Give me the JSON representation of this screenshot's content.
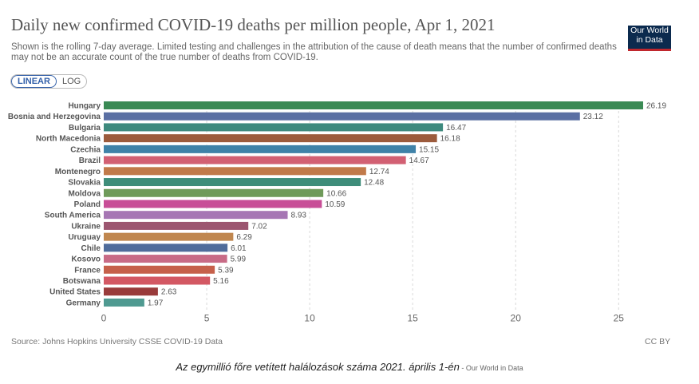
{
  "header": {
    "title": "Daily new confirmed COVID-19 deaths per million people, Apr 1, 2021",
    "subtitle": "Shown is the rolling 7-day average. Limited testing and challenges in the attribution of the cause of death means that the number of confirmed deaths may not be an accurate count of the true number of deaths from COVID-19.",
    "logo_line1": "Our World",
    "logo_line2": "in Data",
    "logo_color": "#0b2a4e",
    "logo_accent": "#c0272d"
  },
  "controls": {
    "linear_label": "LINEAR",
    "log_label": "LOG",
    "active": "LINEAR"
  },
  "footer": {
    "source": "Source: Johns Hopkins University CSSE COVID-19 Data",
    "license": "CC BY"
  },
  "caption": {
    "text": "Az egymillió főre vetített halálozások száma 2021. április 1-én",
    "credit": " - Our World in Data"
  },
  "chart_data": {
    "type": "bar",
    "orientation": "horizontal",
    "categories": [
      "Hungary",
      "Bosnia and Herzegovina",
      "Bulgaria",
      "North Macedonia",
      "Czechia",
      "Brazil",
      "Montenegro",
      "Slovakia",
      "Moldova",
      "Poland",
      "South America",
      "Ukraine",
      "Uruguay",
      "Chile",
      "Kosovo",
      "France",
      "Botswana",
      "United States",
      "Germany"
    ],
    "values": [
      26.19,
      23.12,
      16.47,
      16.18,
      15.15,
      14.67,
      12.74,
      12.48,
      10.66,
      10.59,
      8.93,
      7.02,
      6.29,
      6.01,
      5.99,
      5.39,
      5.16,
      2.63,
      1.97
    ],
    "value_labels": [
      "26.19",
      "23.12",
      "16.47",
      "16.18",
      "15.15",
      "14.67",
      "12.74",
      "12.48",
      "10.66",
      "10.59",
      "8.93",
      "7.02",
      "6.29",
      "6.01",
      "5.99",
      "5.39",
      "5.16",
      "2.63",
      "1.97"
    ],
    "colors": [
      "#3a8a54",
      "#5a6fa3",
      "#3e8a7e",
      "#9c5b3c",
      "#3f82a8",
      "#d26073",
      "#c17a4a",
      "#3e8d7a",
      "#6f9a5a",
      "#c84e97",
      "#a676b4",
      "#9c5670",
      "#c0874f",
      "#4f6c9b",
      "#c86b86",
      "#c6604a",
      "#d35863",
      "#993b3b",
      "#4f9a91"
    ],
    "xticks": [
      "0",
      "5",
      "10",
      "15",
      "20",
      "25"
    ],
    "xlim": [
      0,
      26.19
    ],
    "grid": "vertical dashed"
  }
}
